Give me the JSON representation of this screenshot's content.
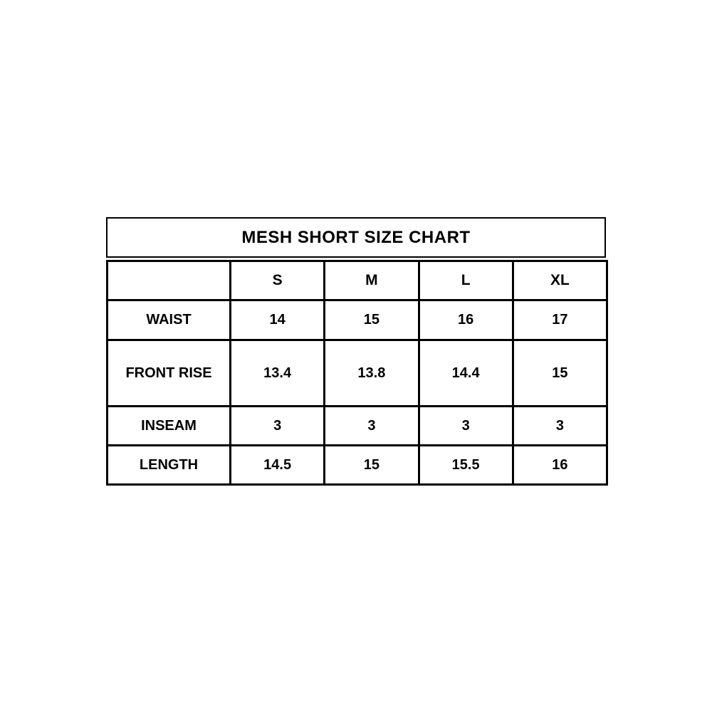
{
  "colors": {
    "background": "#ffffff",
    "border": "#000000",
    "text": "#000000"
  },
  "chart_data": {
    "type": "table",
    "title": "MESH SHORT SIZE CHART",
    "columns": [
      "",
      "S",
      "M",
      "L",
      "XL"
    ],
    "rows": [
      {
        "label": "WAIST",
        "values": [
          "14",
          "15",
          "16",
          "17"
        ]
      },
      {
        "label": "FRONT RISE",
        "values": [
          "13.4",
          "13.8",
          "14.4",
          "15"
        ]
      },
      {
        "label": "INSEAM",
        "values": [
          "3",
          "3",
          "3",
          "3"
        ]
      },
      {
        "label": "LENGTH",
        "values": [
          "14.5",
          "15",
          "15.5",
          "16"
        ]
      }
    ]
  }
}
